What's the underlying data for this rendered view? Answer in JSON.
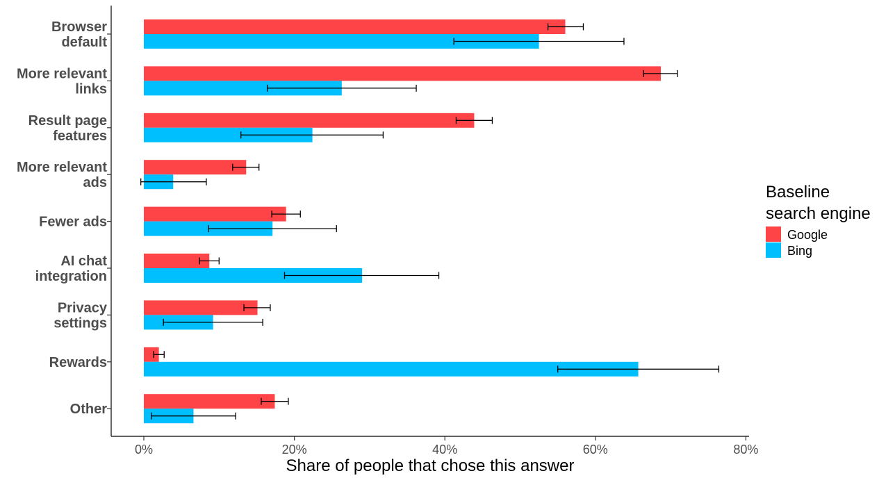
{
  "chart_data": {
    "type": "bar",
    "orientation": "horizontal",
    "categories": [
      [
        "Browser",
        "default"
      ],
      [
        "More relevant",
        "links"
      ],
      [
        "Result page",
        "features"
      ],
      [
        "More relevant",
        "ads"
      ],
      [
        "Fewer ads"
      ],
      [
        "AI chat",
        "integration"
      ],
      [
        "Privacy",
        "settings"
      ],
      [
        "Rewards"
      ],
      [
        "Other"
      ]
    ],
    "series": [
      {
        "name": "Google",
        "color": "#ff4447",
        "values": [
          56.0,
          68.7,
          43.9,
          13.6,
          18.9,
          8.7,
          15.1,
          2.0,
          17.4
        ],
        "error_low": [
          53.7,
          66.4,
          41.5,
          11.8,
          17.0,
          7.4,
          13.3,
          1.3,
          15.6
        ],
        "error_high": [
          58.4,
          70.9,
          46.3,
          15.3,
          20.8,
          10.0,
          16.8,
          2.7,
          19.2
        ]
      },
      {
        "name": "Bing",
        "color": "#00bfff",
        "values": [
          52.5,
          26.3,
          22.4,
          3.9,
          17.1,
          29.0,
          9.2,
          65.7,
          6.6
        ],
        "error_low": [
          41.2,
          16.4,
          12.9,
          -0.4,
          8.6,
          18.7,
          2.6,
          55.0,
          1.0
        ],
        "error_high": [
          63.8,
          36.2,
          31.8,
          8.3,
          25.6,
          39.2,
          15.8,
          76.4,
          12.2
        ]
      }
    ],
    "x_ticks": [
      "0%",
      "20%",
      "40%",
      "60%",
      "80%"
    ],
    "x_tick_values": [
      0,
      20,
      40,
      60,
      80
    ],
    "xlim": [
      -4.4,
      80.4
    ],
    "xlabel": "Share of people that chose this answer",
    "ylabel": "",
    "grid": false,
    "legend": {
      "title_lines": [
        "Baseline",
        "search engine"
      ],
      "placement": "right",
      "entries": [
        "Google",
        "Bing"
      ]
    }
  }
}
